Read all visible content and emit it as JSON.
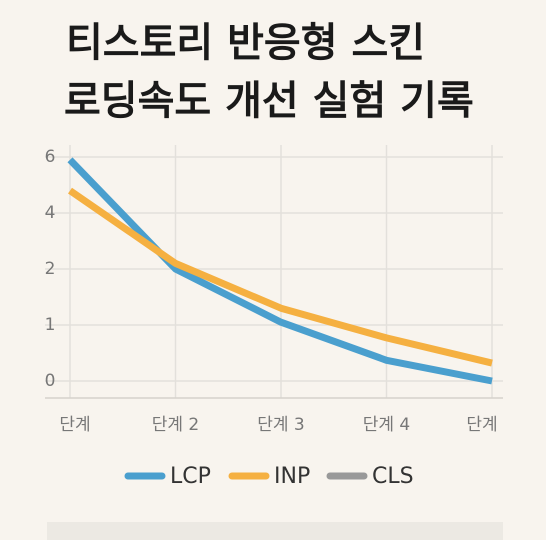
{
  "chart_data": {
    "type": "line",
    "title": [
      "티스토리 반응형 스킨",
      "로딩속도 개선 실험 기록"
    ],
    "categories": [
      "단계",
      "단계 2",
      "단계 3",
      "단계 4",
      "단계"
    ],
    "series": [
      {
        "name": "LCP",
        "color": "#4a9fce",
        "values": [
          5.9,
          2,
          1.05,
          0.37,
          0
        ]
      },
      {
        "name": "INP",
        "color": "#f5b041",
        "values": [
          4.8,
          2.2,
          1.3,
          0.77,
          0.32
        ]
      },
      {
        "name": "CLS",
        "color": "#999999",
        "values": [
          null,
          null,
          null,
          null,
          null
        ]
      }
    ],
    "ylim": [
      0,
      6
    ],
    "yticks": [
      0,
      1,
      2,
      4,
      6
    ],
    "grid": true,
    "legend": "bottom"
  }
}
